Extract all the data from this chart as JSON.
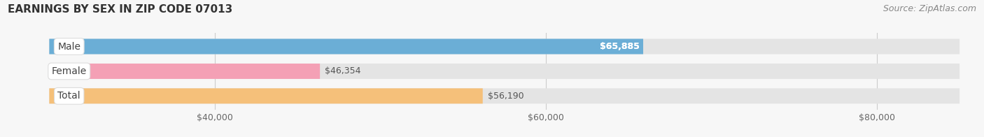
{
  "title": "EARNINGS BY SEX IN ZIP CODE 07013",
  "source": "Source: ZipAtlas.com",
  "categories": [
    "Male",
    "Female",
    "Total"
  ],
  "values": [
    65885,
    46354,
    56190
  ],
  "bar_colors": [
    "#6baed6",
    "#f4a0b5",
    "#f5c07a"
  ],
  "bar_bg_color": "#e4e4e4",
  "xmin": 30000,
  "xmax": 85000,
  "xticks": [
    40000,
    60000,
    80000
  ],
  "xtick_labels": [
    "$40,000",
    "$60,000",
    "$80,000"
  ],
  "bar_height": 0.62,
  "title_fontsize": 11,
  "source_fontsize": 9,
  "tick_fontsize": 9,
  "label_fontsize": 9,
  "cat_fontsize": 10,
  "background_color": "#f7f7f7",
  "value_inside": [
    true,
    false,
    false
  ],
  "value_labels": [
    "$65,885",
    "$46,354",
    "$56,190"
  ]
}
